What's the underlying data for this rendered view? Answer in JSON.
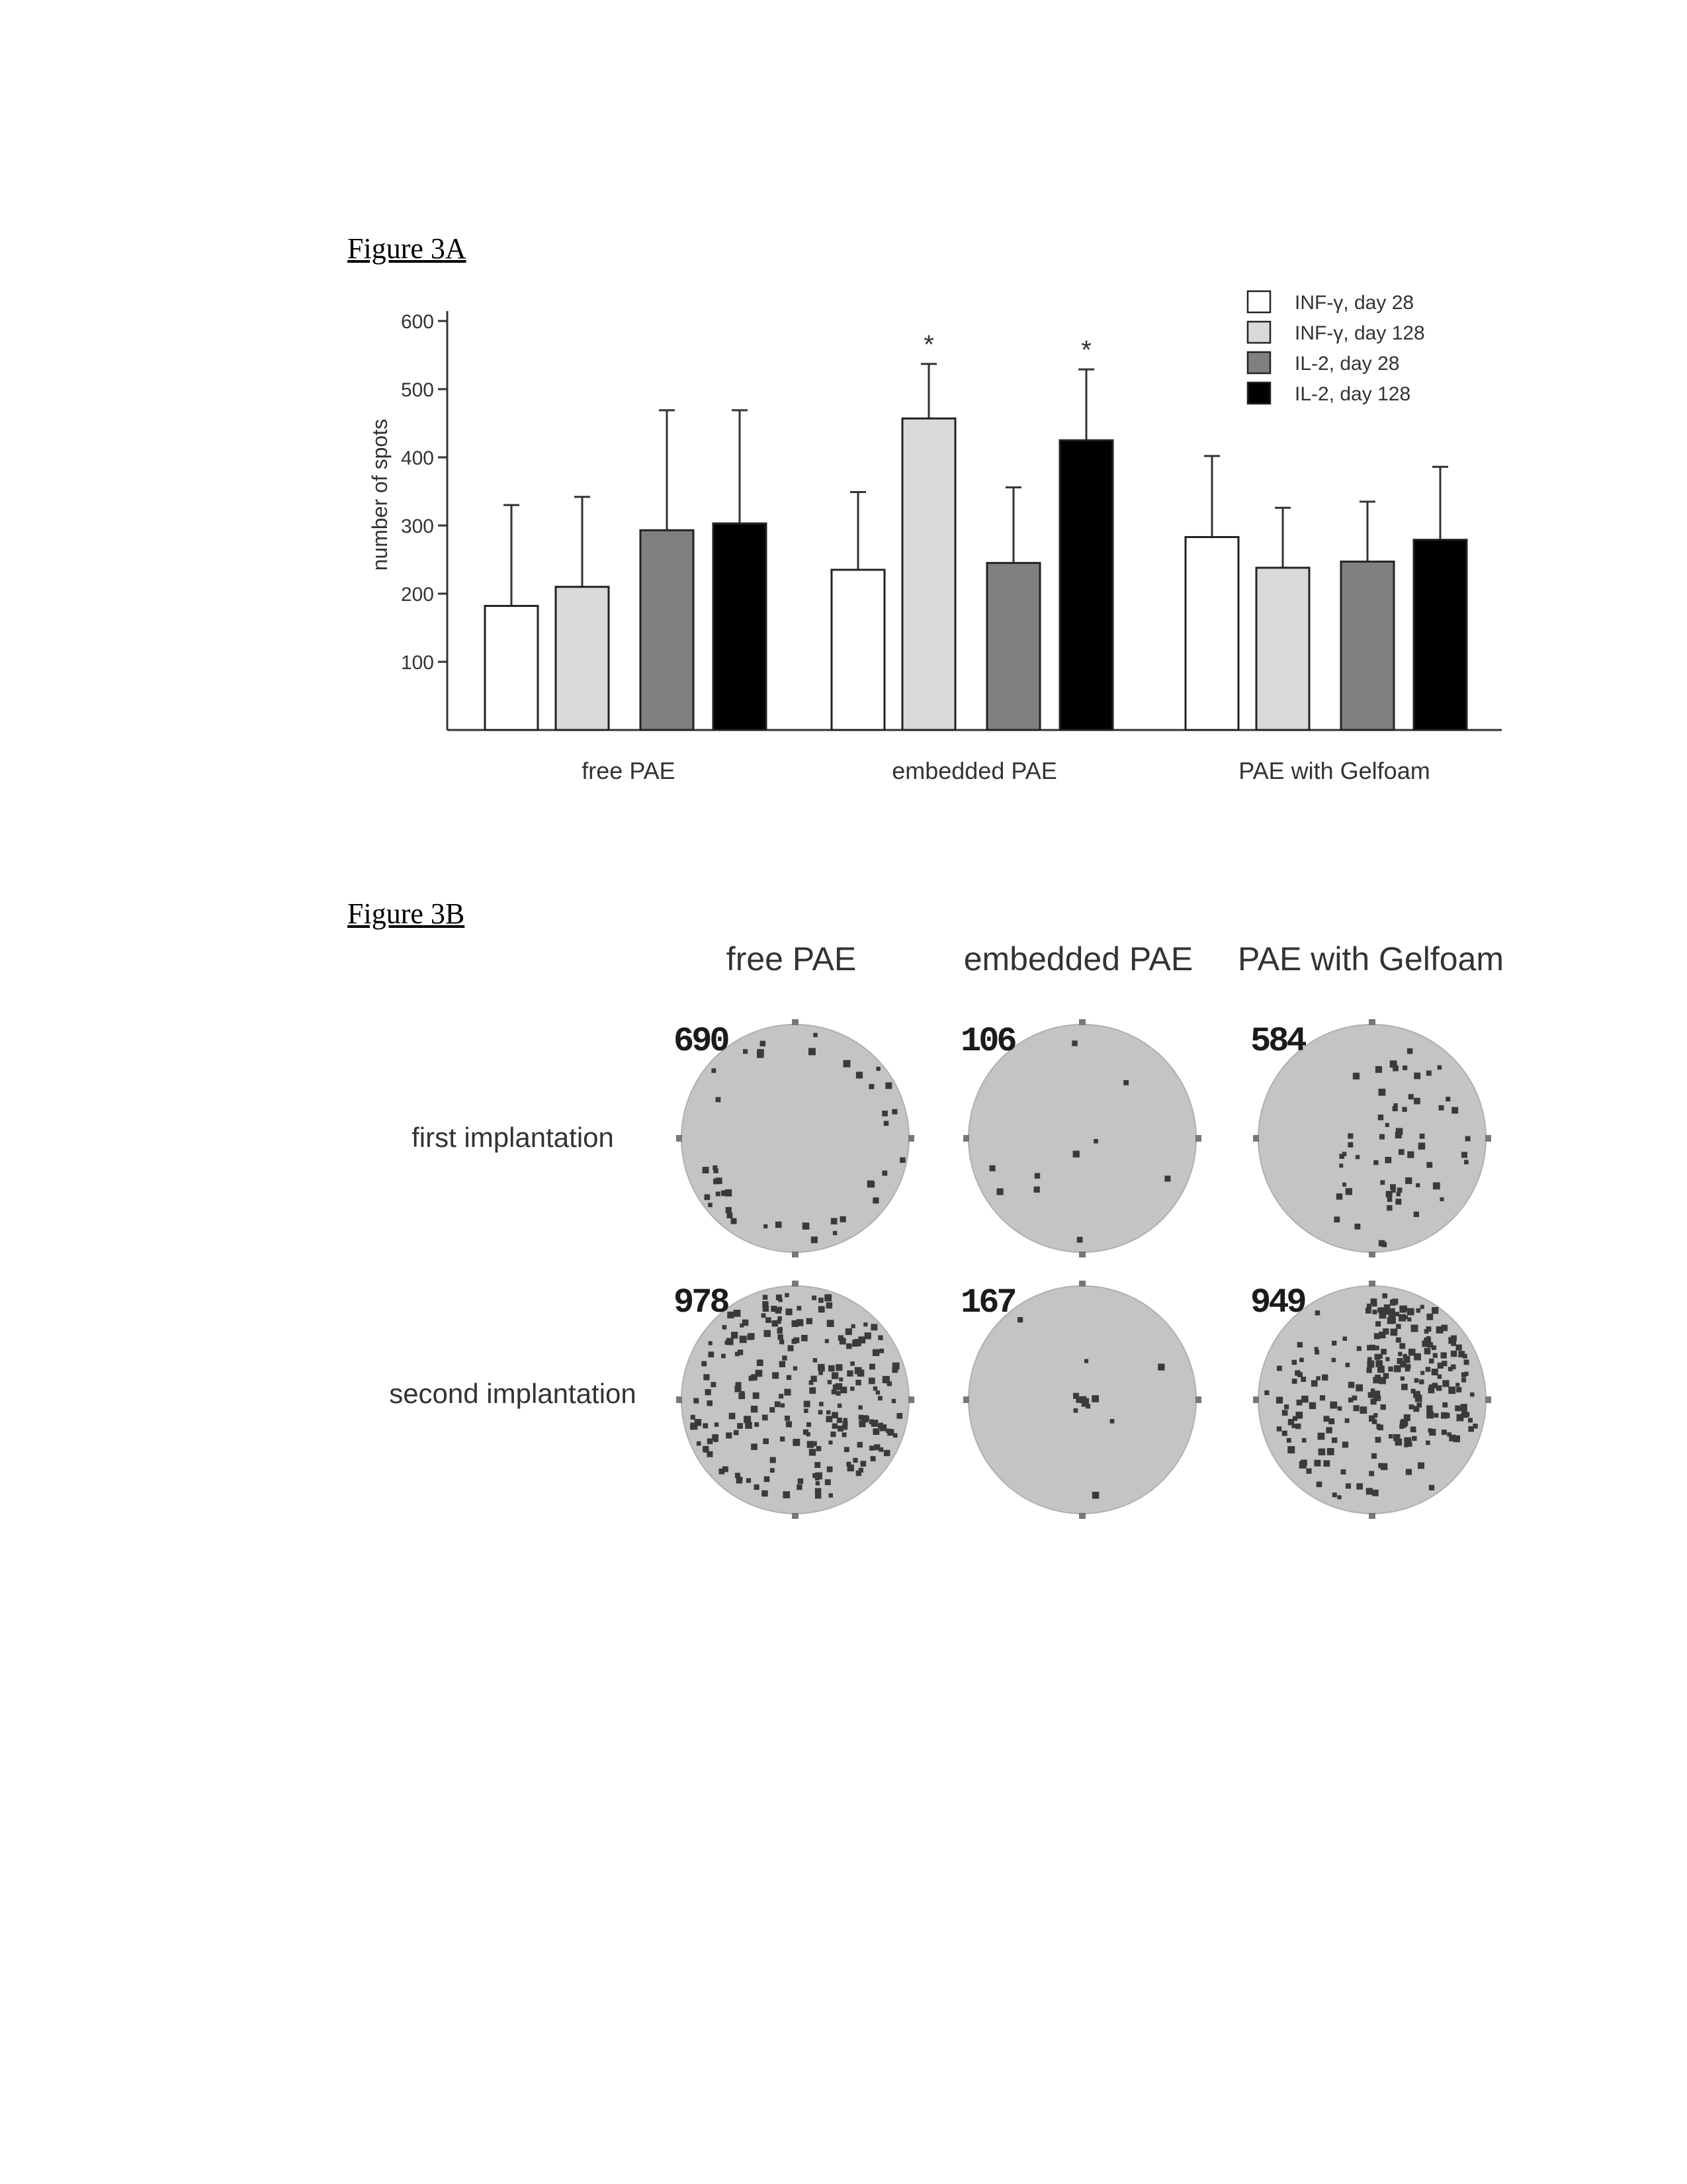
{
  "figure_a": {
    "label": "Figure 3A"
  },
  "figure_b": {
    "label": "Figure 3B",
    "columns": [
      "free PAE",
      "embedded PAE",
      "PAE with Gelfoam"
    ],
    "rows": [
      "first implantation",
      "second implantation"
    ],
    "wells": [
      {
        "row": 0,
        "col": 0,
        "count": "690",
        "spots": 42,
        "pattern": "edge"
      },
      {
        "row": 0,
        "col": 1,
        "count": "106",
        "spots": 10,
        "pattern": "sparse"
      },
      {
        "row": 0,
        "col": 2,
        "count": "584",
        "spots": 60,
        "pattern": "right"
      },
      {
        "row": 1,
        "col": 0,
        "count": "978",
        "spots": 230,
        "pattern": "dense"
      },
      {
        "row": 1,
        "col": 1,
        "count": "167",
        "spots": 14,
        "pattern": "center"
      },
      {
        "row": 1,
        "col": 2,
        "count": "949",
        "spots": 260,
        "pattern": "cluster"
      }
    ],
    "colors": {
      "well": "#c4c4c4",
      "spot": "#3a3a3a",
      "background": "#ffffff"
    }
  },
  "chart_data": {
    "type": "bar",
    "title": "",
    "xlabel": "",
    "ylabel": "number of spots",
    "ylim": [
      0,
      620
    ],
    "yticks": [
      100,
      200,
      300,
      400,
      500,
      600
    ],
    "categories": [
      "free PAE",
      "embedded PAE",
      "PAE with Gelfoam"
    ],
    "legend_position": "top-right",
    "grid": false,
    "series": [
      {
        "name": "INF-γ, day 28",
        "color": "#ffffff",
        "values": [
          182,
          235,
          283
        ],
        "errors": [
          148,
          114,
          119
        ],
        "significant": [
          false,
          false,
          false
        ]
      },
      {
        "name": "INF-γ, day 128",
        "color": "#d9d9d9",
        "values": [
          210,
          457,
          238
        ],
        "errors": [
          132,
          80,
          88
        ],
        "significant": [
          false,
          true,
          false
        ]
      },
      {
        "name": "IL-2, day 28",
        "color": "#808080",
        "values": [
          293,
          245,
          247
        ],
        "errors": [
          176,
          111,
          88
        ],
        "significant": [
          false,
          false,
          false
        ]
      },
      {
        "name": "IL-2, day 128",
        "color": "#000000",
        "values": [
          303,
          425,
          279
        ],
        "errors": [
          166,
          104,
          107
        ],
        "significant": [
          false,
          true,
          false
        ]
      }
    ],
    "significance_marker": "*"
  }
}
